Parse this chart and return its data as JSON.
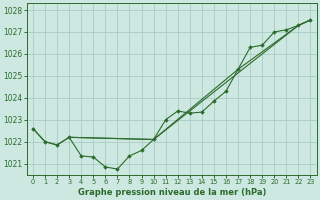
{
  "title": "Graphe pression niveau de la mer (hPa)",
  "background_color": "#cce8e0",
  "grid_color": "#aaccc4",
  "line_color": "#2d6b2d",
  "xlim": [
    -0.5,
    23.5
  ],
  "ylim": [
    1020.5,
    1028.3
  ],
  "yticks": [
    1021,
    1022,
    1023,
    1024,
    1025,
    1026,
    1027,
    1028
  ],
  "xticks": [
    0,
    1,
    2,
    3,
    4,
    5,
    6,
    7,
    8,
    9,
    10,
    11,
    12,
    13,
    14,
    15,
    16,
    17,
    18,
    19,
    20,
    21,
    22,
    23
  ],
  "series_main": {
    "x": [
      0,
      1,
      2,
      3,
      4,
      5,
      6,
      7,
      8,
      9,
      10,
      11,
      12,
      13,
      14,
      15,
      16,
      17,
      18,
      19,
      20,
      21,
      22,
      23
    ],
    "y": [
      1022.6,
      1022.0,
      1021.85,
      1022.2,
      1021.35,
      1021.3,
      1020.85,
      1020.75,
      1021.35,
      1021.6,
      1022.1,
      1023.0,
      1023.4,
      1023.3,
      1023.35,
      1023.85,
      1024.3,
      1025.3,
      1026.3,
      1026.4,
      1027.0,
      1027.1,
      1027.3,
      1027.55
    ]
  },
  "series_env1": {
    "x": [
      0,
      1,
      2,
      3,
      10,
      22,
      23
    ],
    "y": [
      1022.6,
      1022.0,
      1021.85,
      1022.2,
      1022.1,
      1027.3,
      1027.55
    ]
  },
  "series_env2": {
    "x": [
      3,
      10,
      17,
      22,
      23
    ],
    "y": [
      1022.2,
      1022.1,
      1025.3,
      1027.3,
      1027.55
    ]
  }
}
